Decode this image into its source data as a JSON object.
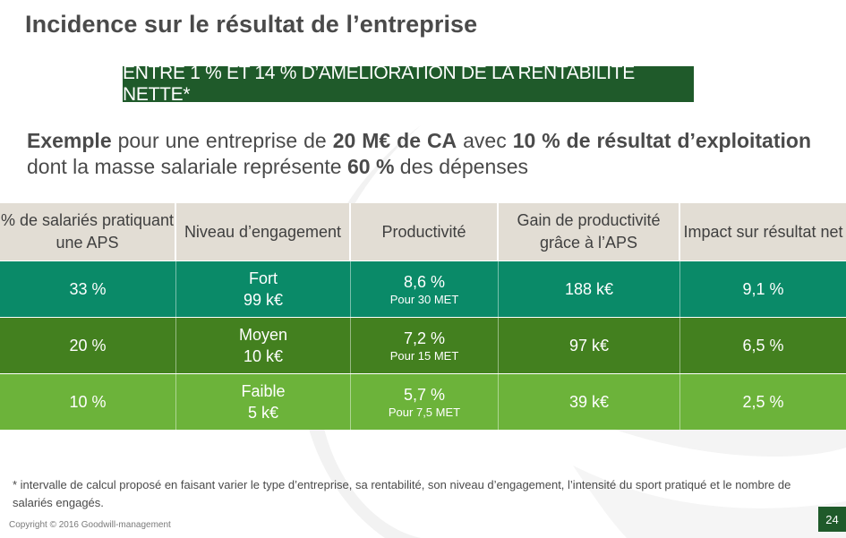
{
  "title": "Incidence sur le résultat de l’entreprise",
  "banner": "ENTRE 1 % ET 14 % D’AMÉLIORATION DE LA RENTABILITÉ NETTE*",
  "example": {
    "p1": "Exemple",
    "p2": " pour une entreprise de ",
    "p3": "20 M€ de CA",
    "p4": " avec ",
    "p5": "10 % de résultat d’exploitation",
    "p6": " dont la masse salariale représente ",
    "p7": "60 %",
    "p8": " des dépenses"
  },
  "table": {
    "headers": [
      "% de salariés pratiquant une APS",
      "Niveau d’engagement",
      "Productivité",
      "Gain de productivité grâce à l’APS",
      "Impact sur résultat net"
    ],
    "rows": [
      {
        "pct": "33 %",
        "level": "Fort",
        "level_value": "99 k€",
        "productivity": "8,6 %",
        "productivity_note": "Pour 30 MET",
        "gain": "188 k€",
        "impact": "9,1 %"
      },
      {
        "pct": "20 %",
        "level": "Moyen",
        "level_value": "10 k€",
        "productivity": "7,2 %",
        "productivity_note": "Pour 15 MET",
        "gain": "97 k€",
        "impact": "6,5 %"
      },
      {
        "pct": "10 %",
        "level": "Faible",
        "level_value": "5 k€",
        "productivity": "5,7 %",
        "productivity_note": "Pour 7,5 MET",
        "gain": "39 k€",
        "impact": "2,5 %"
      }
    ]
  },
  "footnote": "* intervalle de calcul proposé en faisant varier le type d’entreprise, sa rentabilité, son niveau d’engagement, l’intensité du sport pratiqué et le nombre de salariés engagés.",
  "copyright": "Copyright © 2016 Goodwill-management",
  "page_number": "24",
  "colors": {
    "banner": "#1f5a2a",
    "row_fort": "#0a8a68",
    "row_moyen": "#43801f",
    "row_faible": "#6cb33a",
    "header": "#e2ddd4"
  }
}
